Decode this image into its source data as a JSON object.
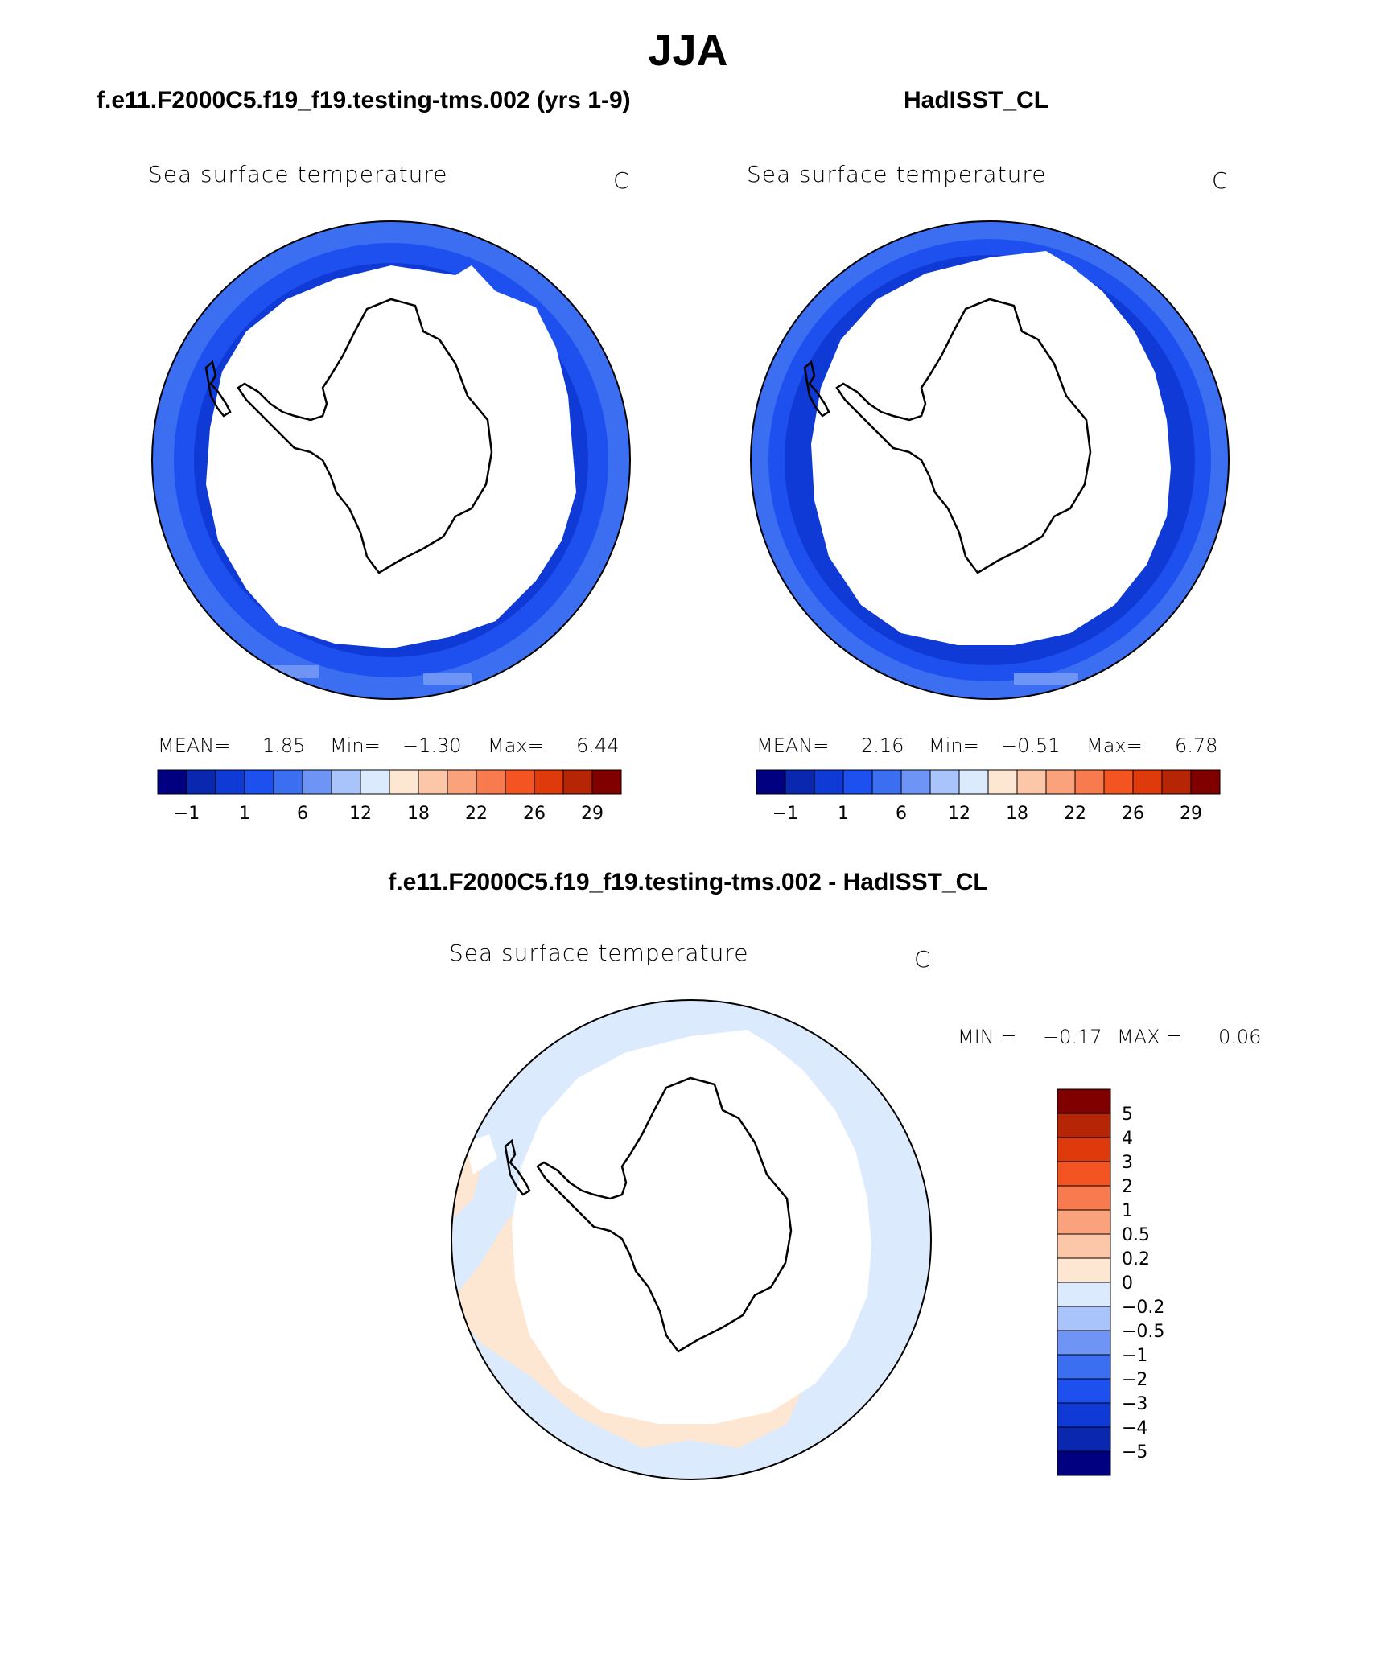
{
  "season": "JJA",
  "panels": [
    {
      "header": "f.e11.F2000C5.f19_f19.testing-tms.002 (yrs 1-9)",
      "variable": "Sea surface temperature",
      "units": "C",
      "stats": {
        "mean_label": "MEAN=",
        "mean": "1.85",
        "min_label": "Min=",
        "min": "−1.30",
        "max_label": "Max=",
        "max": "6.44"
      }
    },
    {
      "header": "HadISST_CL",
      "variable": "Sea surface temperature",
      "units": "C",
      "stats": {
        "mean_label": "MEAN=",
        "mean": "2.16",
        "min_label": "Min=",
        "min": "−0.51",
        "max_label": "Max=",
        "max": "6.78"
      }
    }
  ],
  "abs_colorbar": {
    "colors": [
      "#000080",
      "#0a27b0",
      "#0f3ad6",
      "#1e50f0",
      "#3c6ef2",
      "#6e95f5",
      "#a9c4fa",
      "#dbeafd",
      "#fde6d2",
      "#fbc7a8",
      "#f9a27c",
      "#f87a4f",
      "#f45322",
      "#de3a0c",
      "#b52506",
      "#800000"
    ],
    "tick_labels": [
      "−1",
      "1",
      "6",
      "12",
      "18",
      "22",
      "26",
      "29"
    ]
  },
  "diff_panel": {
    "header": "f.e11.F2000C5.f19_f19.testing-tms.002 - HadISST_CL",
    "variable": "Sea surface temperature",
    "units": "C",
    "min_label": "MIN =",
    "min": "−0.17",
    "max_label": "MAX =",
    "max": "0.06"
  },
  "diff_colorbar": {
    "colors_top_to_bottom": [
      "#800000",
      "#b52506",
      "#de3a0c",
      "#f45322",
      "#f87a4f",
      "#f9a27c",
      "#fbc7a8",
      "#fde6d2",
      "#dbeafd",
      "#a9c4fa",
      "#6e95f5",
      "#3c6ef2",
      "#1e50f0",
      "#0f3ad6",
      "#0a27b0",
      "#000080"
    ],
    "tick_labels": [
      "5",
      "4",
      "3",
      "2",
      "1",
      "0.5",
      "0.2",
      "0",
      "−0.2",
      "−0.5",
      "−1",
      "−2",
      "−3",
      "−4",
      "−5"
    ]
  }
}
